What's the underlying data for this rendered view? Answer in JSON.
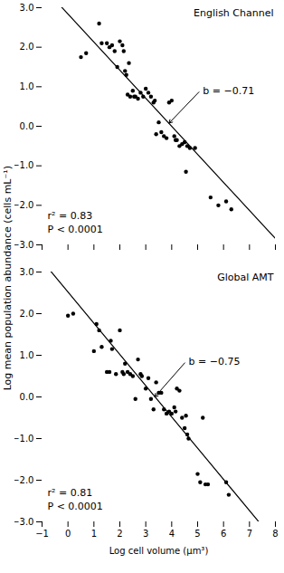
{
  "chart_data": [
    {
      "type": "scatter",
      "title": "English Channel",
      "ylabel": "Log mean population abundance (cells mL⁻¹)",
      "x": [
        0.5,
        0.7,
        1.2,
        1.3,
        1.5,
        1.6,
        1.7,
        1.8,
        1.9,
        2.0,
        2.1,
        2.15,
        2.2,
        2.25,
        2.3,
        2.35,
        2.4,
        2.5,
        2.55,
        2.6,
        2.7,
        2.8,
        2.9,
        3.0,
        3.1,
        3.2,
        3.3,
        3.35,
        3.4,
        3.5,
        3.6,
        3.7,
        3.8,
        3.9,
        4.0,
        4.1,
        4.15,
        4.2,
        4.3,
        4.4,
        4.5,
        4.55,
        4.6,
        4.7,
        4.9,
        5.5,
        5.8,
        6.1,
        6.3
      ],
      "values": [
        1.75,
        1.85,
        2.6,
        2.1,
        2.1,
        2.0,
        2.05,
        1.9,
        1.5,
        2.15,
        2.05,
        1.9,
        1.4,
        1.3,
        0.8,
        1.6,
        0.75,
        0.9,
        0.75,
        0.75,
        0.7,
        0.85,
        0.75,
        0.95,
        0.85,
        0.75,
        0.6,
        0.65,
        -0.2,
        0.1,
        -0.15,
        -0.25,
        -0.3,
        0.6,
        0.65,
        -0.25,
        -0.35,
        -0.35,
        -0.5,
        -0.45,
        -0.4,
        -1.15,
        -0.5,
        -0.55,
        -0.55,
        -1.8,
        -2.0,
        -1.9,
        -2.1
      ],
      "color": "black",
      "fit": {
        "slope": -0.71,
        "intercept": 2.84
      },
      "annotations": [
        {
          "text": "r² = 0.83"
        },
        {
          "text": "P < 0.0001"
        },
        {
          "text": "b = −0.71",
          "x": 5.1,
          "y": 0.9,
          "arrow_x": 3.9,
          "arrow_y": 0.08
        }
      ],
      "xlim": [
        -1,
        8
      ],
      "ylim": [
        -3,
        3
      ],
      "xticks": [
        -1,
        0,
        1,
        2,
        3,
        4,
        5,
        6,
        7,
        8
      ],
      "yticks": [
        -3,
        -2,
        -1,
        0,
        1,
        2,
        3
      ],
      "tick_labels": "y"
    },
    {
      "type": "scatter",
      "title": "Global AMT",
      "xlabel": "Log cell volume (μm³)",
      "x": [
        0.0,
        0.2,
        1.0,
        1.1,
        1.2,
        1.3,
        1.5,
        1.6,
        1.65,
        1.7,
        1.85,
        2.0,
        2.1,
        2.15,
        2.2,
        2.3,
        2.4,
        2.5,
        2.6,
        2.7,
        2.8,
        2.85,
        3.0,
        3.1,
        3.2,
        3.3,
        3.4,
        3.5,
        3.6,
        3.7,
        3.8,
        3.9,
        4.0,
        4.1,
        4.15,
        4.2,
        4.3,
        4.4,
        4.5,
        4.55,
        4.6,
        4.65,
        5.0,
        5.1,
        5.2,
        5.3,
        5.4,
        6.1,
        6.2
      ],
      "values": [
        1.95,
        2.0,
        1.1,
        1.75,
        1.6,
        1.2,
        0.6,
        0.6,
        1.35,
        1.15,
        0.55,
        1.6,
        0.6,
        0.55,
        0.8,
        0.6,
        0.55,
        0.5,
        -0.05,
        0.9,
        0.55,
        0.5,
        0.2,
        0.45,
        -0.05,
        -0.3,
        0.35,
        0.1,
        0.1,
        -0.3,
        -0.4,
        -0.35,
        -0.4,
        -0.25,
        -0.35,
        0.2,
        0.15,
        -0.5,
        -0.75,
        -0.45,
        -0.9,
        -1.0,
        -1.85,
        -2.05,
        -0.5,
        -2.1,
        -2.1,
        -2.05,
        -2.35
      ],
      "color": "black",
      "fit": {
        "slope": -0.75,
        "intercept": 2.52
      },
      "annotations": [
        {
          "text": "r² = 0.81"
        },
        {
          "text": "P < 0.0001"
        },
        {
          "text": "b = −0.75",
          "x": 4.55,
          "y": 0.85,
          "arrow_x": 3.35,
          "arrow_y": 0.0
        }
      ],
      "xlim": [
        -1,
        8
      ],
      "ylim": [
        -3,
        3
      ],
      "xticks": [
        -1,
        0,
        1,
        2,
        3,
        4,
        5,
        6,
        7,
        8
      ],
      "yticks": [
        -3,
        -2,
        -1,
        0,
        1,
        2,
        3
      ]
    }
  ]
}
